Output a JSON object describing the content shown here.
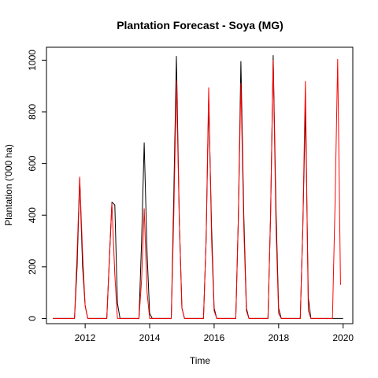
{
  "chart_data": {
    "type": "line",
    "title": "Plantation Forecast - Soya (MG)",
    "xlabel": "Time",
    "ylabel": "Plantation ('000 ha)",
    "xlim": [
      2010.8,
      2020.3
    ],
    "ylim": [
      -20,
      1050
    ],
    "x_ticks": [
      2012,
      2014,
      2016,
      2018,
      2020
    ],
    "y_ticks": [
      0,
      200,
      400,
      600,
      800,
      1000
    ],
    "grid": false,
    "legend": "none",
    "series": [
      {
        "color": "#000000",
        "points": [
          [
            2011.0,
            0
          ],
          [
            2011.5,
            0
          ],
          [
            2011.67,
            0
          ],
          [
            2011.75,
            200
          ],
          [
            2011.83,
            540
          ],
          [
            2011.92,
            200
          ],
          [
            2012.0,
            50
          ],
          [
            2012.08,
            0
          ],
          [
            2012.5,
            0
          ],
          [
            2012.67,
            0
          ],
          [
            2012.75,
            220
          ],
          [
            2012.83,
            450
          ],
          [
            2012.92,
            440
          ],
          [
            2013.0,
            60
          ],
          [
            2013.08,
            0
          ],
          [
            2013.5,
            0
          ],
          [
            2013.67,
            0
          ],
          [
            2013.75,
            300
          ],
          [
            2013.83,
            680
          ],
          [
            2013.92,
            250
          ],
          [
            2014.0,
            20
          ],
          [
            2014.08,
            0
          ],
          [
            2014.5,
            0
          ],
          [
            2014.67,
            0
          ],
          [
            2014.75,
            480
          ],
          [
            2014.83,
            1015
          ],
          [
            2014.92,
            380
          ],
          [
            2015.0,
            40
          ],
          [
            2015.08,
            0
          ],
          [
            2015.5,
            0
          ],
          [
            2015.67,
            0
          ],
          [
            2015.75,
            300
          ],
          [
            2015.83,
            850
          ],
          [
            2015.92,
            350
          ],
          [
            2016.0,
            40
          ],
          [
            2016.08,
            0
          ],
          [
            2016.5,
            0
          ],
          [
            2016.67,
            0
          ],
          [
            2016.75,
            380
          ],
          [
            2016.83,
            995
          ],
          [
            2016.92,
            400
          ],
          [
            2017.0,
            40
          ],
          [
            2017.08,
            0
          ],
          [
            2017.5,
            0
          ],
          [
            2017.67,
            0
          ],
          [
            2017.75,
            400
          ],
          [
            2017.83,
            1018
          ],
          [
            2017.92,
            420
          ],
          [
            2018.0,
            40
          ],
          [
            2018.08,
            0
          ],
          [
            2018.5,
            0
          ],
          [
            2018.67,
            0
          ],
          [
            2018.75,
            350
          ],
          [
            2018.83,
            820
          ],
          [
            2018.92,
            80
          ],
          [
            2019.0,
            0
          ],
          [
            2019.5,
            0
          ],
          [
            2019.67,
            0
          ],
          [
            2019.75,
            0
          ],
          [
            2019.83,
            0
          ],
          [
            2019.92,
            0
          ],
          [
            2020.0,
            0
          ]
        ]
      },
      {
        "color": "#ff0000",
        "points": [
          [
            2011.0,
            0
          ],
          [
            2011.5,
            0
          ],
          [
            2011.67,
            0
          ],
          [
            2011.75,
            250
          ],
          [
            2011.83,
            548
          ],
          [
            2011.92,
            250
          ],
          [
            2012.0,
            50
          ],
          [
            2012.08,
            0
          ],
          [
            2012.5,
            0
          ],
          [
            2012.67,
            0
          ],
          [
            2012.75,
            230
          ],
          [
            2012.83,
            445
          ],
          [
            2012.92,
            170
          ],
          [
            2013.0,
            0
          ],
          [
            2013.5,
            0
          ],
          [
            2013.67,
            0
          ],
          [
            2013.75,
            150
          ],
          [
            2013.83,
            425
          ],
          [
            2013.92,
            100
          ],
          [
            2014.0,
            0
          ],
          [
            2014.5,
            0
          ],
          [
            2014.67,
            0
          ],
          [
            2014.75,
            400
          ],
          [
            2014.83,
            920
          ],
          [
            2014.92,
            380
          ],
          [
            2015.0,
            40
          ],
          [
            2015.08,
            0
          ],
          [
            2015.5,
            0
          ],
          [
            2015.67,
            0
          ],
          [
            2015.75,
            300
          ],
          [
            2015.83,
            893
          ],
          [
            2015.92,
            300
          ],
          [
            2016.0,
            30
          ],
          [
            2016.08,
            0
          ],
          [
            2016.5,
            0
          ],
          [
            2016.67,
            0
          ],
          [
            2016.75,
            380
          ],
          [
            2016.83,
            910
          ],
          [
            2016.92,
            350
          ],
          [
            2017.0,
            30
          ],
          [
            2017.08,
            0
          ],
          [
            2017.5,
            0
          ],
          [
            2017.67,
            0
          ],
          [
            2017.75,
            400
          ],
          [
            2017.83,
            1000
          ],
          [
            2017.92,
            350
          ],
          [
            2018.0,
            20
          ],
          [
            2018.08,
            0
          ],
          [
            2018.5,
            0
          ],
          [
            2018.67,
            0
          ],
          [
            2018.75,
            350
          ],
          [
            2018.83,
            918
          ],
          [
            2018.92,
            30
          ],
          [
            2019.0,
            0
          ],
          [
            2019.5,
            0
          ],
          [
            2019.67,
            0
          ],
          [
            2019.75,
            450
          ],
          [
            2019.83,
            1003
          ],
          [
            2019.92,
            130
          ]
        ]
      }
    ]
  }
}
